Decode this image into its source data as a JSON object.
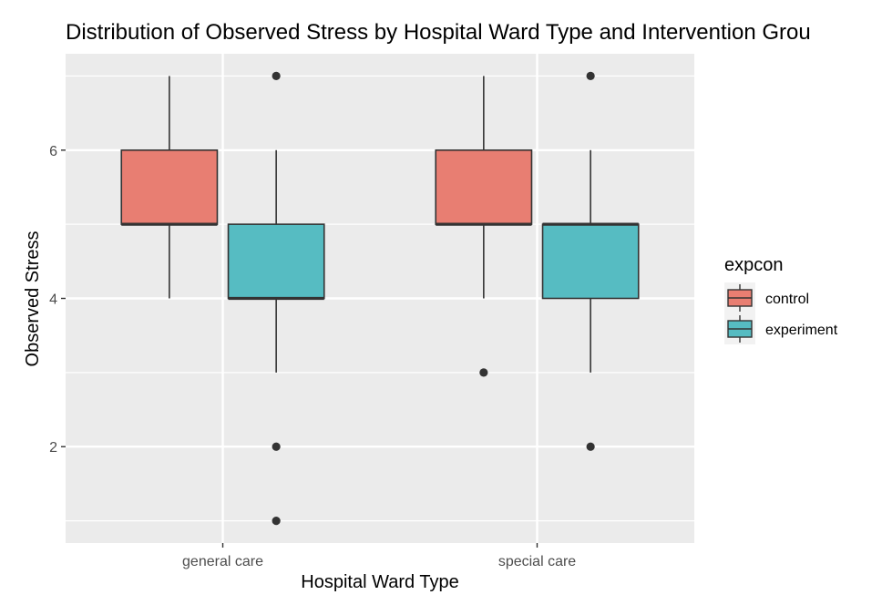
{
  "chart_data": {
    "type": "box",
    "title": "Distribution of Observed Stress by Hospital Ward Type and Intervention Grou",
    "xlabel": "Hospital Ward Type",
    "ylabel": "Observed Stress",
    "categories": [
      "general care",
      "special care"
    ],
    "ylim": [
      0.7,
      7.3
    ],
    "yticks": [
      2,
      4,
      6
    ],
    "yticklabels": [
      "2",
      "4",
      "6"
    ],
    "grid": true,
    "legend": {
      "title": "expcon",
      "placement": "right"
    },
    "series": [
      {
        "name": "control",
        "color": "#E87E72",
        "boxes": [
          {
            "category": "general care",
            "min": 4,
            "q1": 5,
            "median": 5,
            "q3": 6,
            "max": 7,
            "outliers": []
          },
          {
            "category": "special care",
            "min": 4,
            "q1": 5,
            "median": 5,
            "q3": 6,
            "max": 7,
            "outliers": [
              3
            ]
          }
        ]
      },
      {
        "name": "experiment",
        "color": "#56BCC2",
        "boxes": [
          {
            "category": "general care",
            "min": 3,
            "q1": 4,
            "median": 4,
            "q3": 5,
            "max": 6,
            "outliers": [
              7,
              2,
              1
            ]
          },
          {
            "category": "special care",
            "min": 3,
            "q1": 4,
            "median": 5,
            "q3": 5,
            "max": 6,
            "outliers": [
              7,
              2
            ]
          }
        ]
      }
    ],
    "panel_color": "#EBEBEB",
    "grid_color": "#FFFFFF",
    "outline_color": "#333333"
  }
}
